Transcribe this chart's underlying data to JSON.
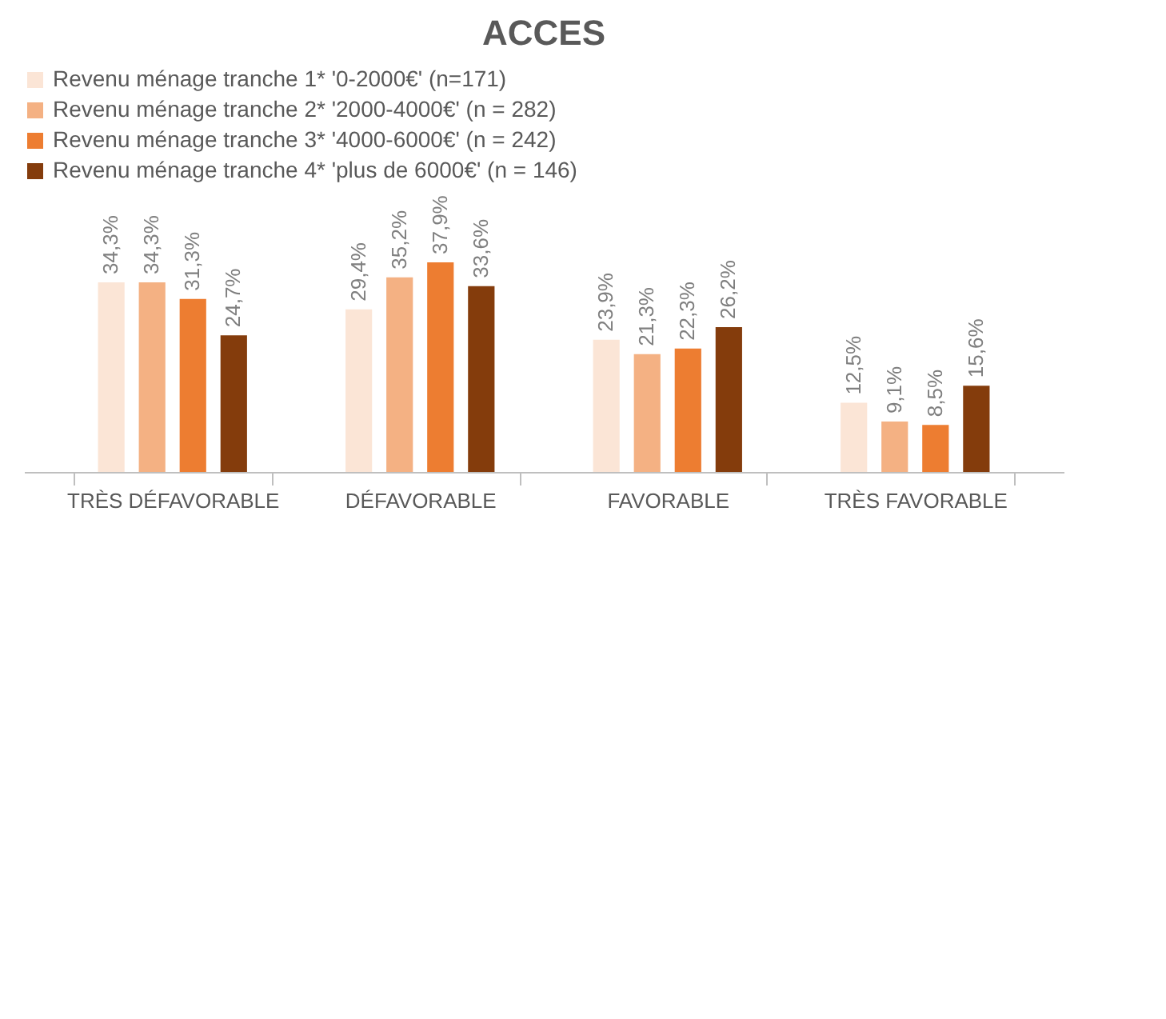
{
  "chart_data": {
    "type": "bar",
    "title": "ACCES",
    "categories": [
      "TRÈS DÉFAVORABLE",
      "DÉFAVORABLE",
      "FAVORABLE",
      "TRÈS FAVORABLE"
    ],
    "series": [
      {
        "name": "Revenu ménage tranche 1* '0-2000€' (n=171)",
        "color": "#fbe5d6",
        "values": [
          34.3,
          29.4,
          23.9,
          12.5
        ],
        "value_labels": [
          "34,3%",
          "29,4%",
          "23,9%",
          "12,5%"
        ]
      },
      {
        "name": "Revenu ménage tranche 2* '2000-4000€' (n = 282)",
        "color": "#f4b183",
        "values": [
          34.3,
          35.2,
          21.3,
          9.1
        ],
        "value_labels": [
          "34,3%",
          "35,2%",
          "21,3%",
          "9,1%"
        ]
      },
      {
        "name": "Revenu ménage tranche 3* '4000-6000€' (n = 242)",
        "color": "#ed7d31",
        "values": [
          31.3,
          37.9,
          22.3,
          8.5
        ],
        "value_labels": [
          "31,3%",
          "37,9%",
          "22,3%",
          "8,5%"
        ]
      },
      {
        "name": "Revenu ménage tranche 4* 'plus de 6000€' (n = 146)",
        "color": "#843c0c",
        "values": [
          24.7,
          33.6,
          26.2,
          15.6
        ],
        "value_labels": [
          "24,7%",
          "33,6%",
          "26,2%",
          "15,6%"
        ]
      }
    ],
    "legend": "top",
    "grid": false
  }
}
